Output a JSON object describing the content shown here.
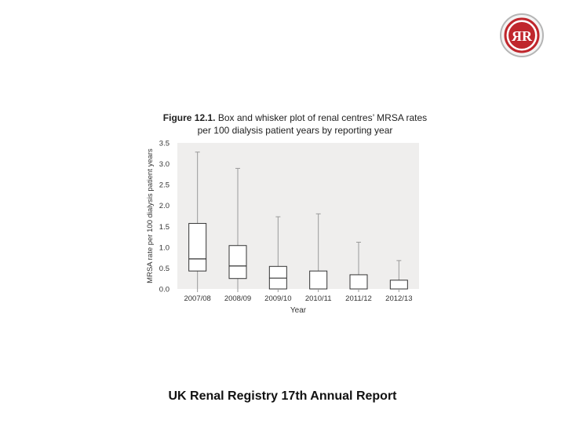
{
  "logo": {
    "text": "ЯR",
    "ring_color": "#c0272d"
  },
  "caption": {
    "label": "Figure 12.1.",
    "text": " Box and whisker plot of renal centres’ MRSA rates per 100 dialysis patient years by reporting year"
  },
  "footer": {
    "text": "UK Renal Registry 17th Annual Report"
  },
  "chart_data": {
    "type": "box",
    "xlabel": "Year",
    "ylabel": "MRSA rate per 100 dialysis patient years",
    "ylim": [
      0,
      3.5
    ],
    "yticks": [
      "0.0",
      "0.5",
      "1.0",
      "1.5",
      "2.0",
      "2.5",
      "3.0",
      "3.5"
    ],
    "grid": false,
    "plot_background": "#efeeed",
    "categories": [
      "2007/08",
      "2008/09",
      "2009/10",
      "2010/11",
      "2011/12",
      "2012/13"
    ],
    "boxes": [
      {
        "min": 0,
        "q1": 0.43,
        "median": 0.72,
        "q3": 1.57,
        "max": 3.28
      },
      {
        "min": 0,
        "q1": 0.25,
        "median": 0.55,
        "q3": 1.04,
        "max": 2.89
      },
      {
        "min": 0,
        "q1": 0.0,
        "median": 0.26,
        "q3": 0.54,
        "max": 1.73
      },
      {
        "min": 0,
        "q1": 0.0,
        "median": 0.0,
        "q3": 0.43,
        "max": 1.8
      },
      {
        "min": 0,
        "q1": 0.0,
        "median": 0.0,
        "q3": 0.34,
        "max": 1.12
      },
      {
        "min": 0,
        "q1": 0.0,
        "median": 0.0,
        "q3": 0.21,
        "max": 0.68
      }
    ]
  }
}
